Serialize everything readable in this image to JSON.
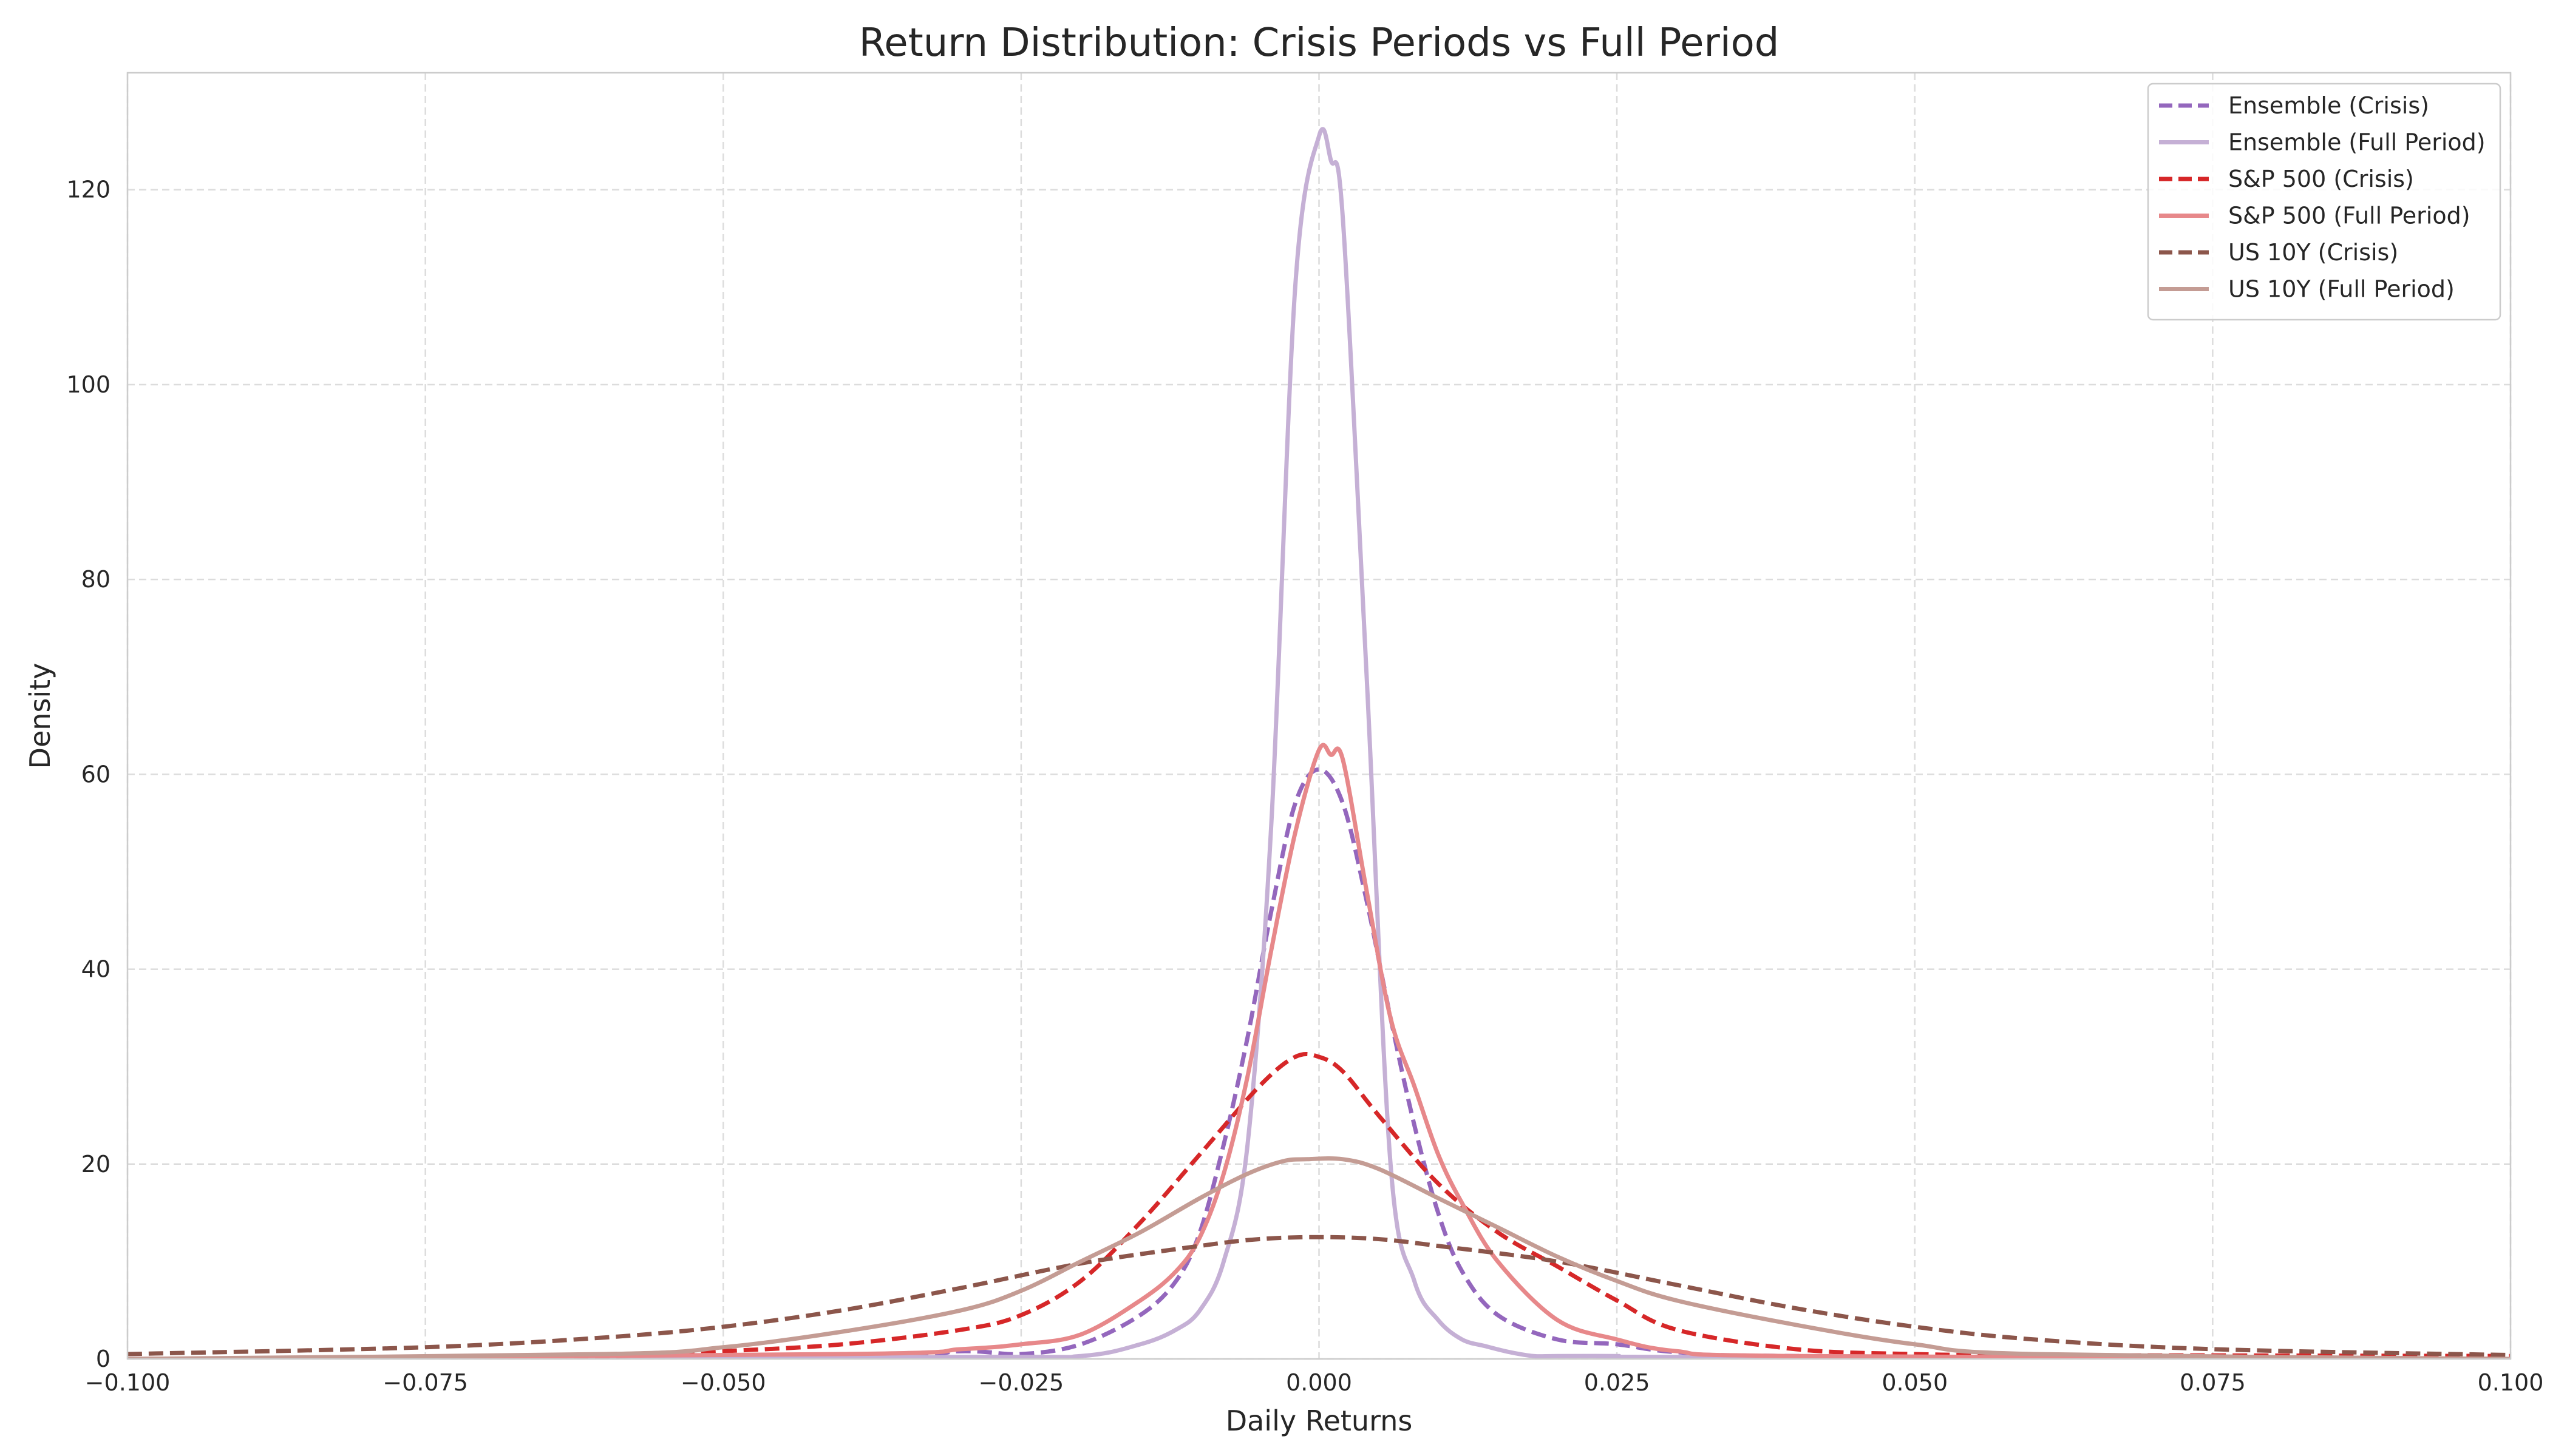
{
  "chart_data": {
    "type": "line",
    "title": "Return Distribution: Crisis Periods vs Full Period",
    "xlabel": "Daily Returns",
    "ylabel": "Density",
    "xlim": [
      -0.1,
      0.1
    ],
    "ylim": [
      0,
      132
    ],
    "x_ticks": [
      -0.1,
      -0.075,
      -0.05,
      -0.025,
      0.0,
      0.025,
      0.05,
      0.075,
      0.1
    ],
    "x_tick_labels": [
      "−0.100",
      "−0.075",
      "−0.050",
      "−0.025",
      "0.000",
      "0.025",
      "0.050",
      "0.075",
      "0.100"
    ],
    "y_ticks": [
      0,
      20,
      40,
      60,
      80,
      100,
      120
    ],
    "y_tick_labels": [
      "0",
      "20",
      "40",
      "60",
      "80",
      "100",
      "120"
    ],
    "grid": true,
    "legend_position": "top-right",
    "series": [
      {
        "name": "Ensemble (Crisis)",
        "color": "#9467bd",
        "style": "dashed",
        "x": [
          -0.1,
          -0.04,
          -0.03,
          -0.025,
          -0.02,
          -0.015,
          -0.012,
          -0.01,
          -0.008,
          -0.006,
          -0.004,
          -0.002,
          0.0,
          0.002,
          0.004,
          0.006,
          0.008,
          0.01,
          0.012,
          0.015,
          0.02,
          0.025,
          0.03,
          0.04,
          0.1
        ],
        "y": [
          0.0,
          0.3,
          0.8,
          0.5,
          1.5,
          4.5,
          8,
          13,
          22,
          33,
          46,
          57,
          60.5,
          57,
          47,
          35,
          24,
          15,
          9,
          4.5,
          2,
          1.5,
          0.7,
          0.3,
          0.0
        ]
      },
      {
        "name": "Ensemble (Full Period)",
        "color": "#c5b0d5",
        "style": "solid",
        "x": [
          -0.1,
          -0.03,
          -0.02,
          -0.015,
          -0.012,
          -0.01,
          -0.008,
          -0.006,
          -0.004,
          -0.002,
          0.0,
          0.001,
          0.002,
          0.004,
          0.006,
          0.008,
          0.01,
          0.012,
          0.014,
          0.016,
          0.018,
          0.02,
          0.025,
          0.03,
          0.1
        ],
        "y": [
          0.0,
          0.2,
          0.3,
          1.5,
          3,
          5,
          10,
          22,
          55,
          110,
          125.5,
          123,
          117,
          70,
          20,
          8,
          4,
          2,
          1.3,
          0.7,
          0.3,
          0.3,
          0.3,
          0.2,
          0.0
        ]
      },
      {
        "name": "S&P 500 (Crisis)",
        "color": "#d62728",
        "style": "dashed",
        "x": [
          -0.1,
          -0.06,
          -0.05,
          -0.04,
          -0.03,
          -0.025,
          -0.02,
          -0.015,
          -0.01,
          -0.005,
          -0.002,
          0.0,
          0.002,
          0.005,
          0.01,
          0.015,
          0.02,
          0.025,
          0.03,
          0.04,
          0.05,
          0.06,
          0.1
        ],
        "y": [
          0.0,
          0.3,
          0.8,
          1.5,
          3,
          4.5,
          8,
          14,
          21,
          28,
          31,
          31,
          29.5,
          25,
          18,
          13,
          9.5,
          6,
          3,
          1,
          0.5,
          0.4,
          0.3
        ]
      },
      {
        "name": "S&P 500 (Full Period)",
        "color": "#e7888a",
        "style": "solid",
        "x": [
          -0.1,
          -0.04,
          -0.03,
          -0.025,
          -0.02,
          -0.015,
          -0.012,
          -0.01,
          -0.008,
          -0.006,
          -0.004,
          -0.002,
          0.0,
          0.001,
          0.002,
          0.004,
          0.006,
          0.008,
          0.01,
          0.012,
          0.015,
          0.02,
          0.025,
          0.03,
          0.04,
          0.1
        ],
        "y": [
          0.0,
          0.5,
          1,
          1.5,
          2.5,
          6,
          9,
          12.5,
          19,
          29,
          42,
          54,
          62.5,
          62,
          61.5,
          48,
          35,
          28,
          21,
          16,
          10,
          4,
          2,
          0.8,
          0.3,
          0.0
        ]
      },
      {
        "name": "US 10Y (Crisis)",
        "color": "#8c564b",
        "style": "dashed",
        "x": [
          -0.1,
          -0.075,
          -0.06,
          -0.05,
          -0.04,
          -0.03,
          -0.02,
          -0.01,
          -0.005,
          0.0,
          0.005,
          0.01,
          0.02,
          0.03,
          0.04,
          0.05,
          0.06,
          0.075,
          0.1
        ],
        "y": [
          0.5,
          1.2,
          2.2,
          3.3,
          5,
          7.3,
          9.8,
          11.6,
          12.3,
          12.5,
          12.3,
          11.6,
          10,
          7.6,
          5.2,
          3.3,
          2,
          1,
          0.4
        ]
      },
      {
        "name": "US 10Y (Full Period)",
        "color": "#c49c94",
        "style": "solid",
        "x": [
          -0.1,
          -0.06,
          -0.05,
          -0.04,
          -0.03,
          -0.025,
          -0.02,
          -0.015,
          -0.01,
          -0.006,
          -0.003,
          -0.001,
          0.002,
          0.005,
          0.01,
          0.015,
          0.02,
          0.025,
          0.03,
          0.04,
          0.05,
          0.06,
          0.1
        ],
        "y": [
          0.0,
          0.5,
          1.2,
          2.8,
          5,
          7,
          10,
          13,
          16.5,
          19,
          20.3,
          20.5,
          20.5,
          19.5,
          16.5,
          13.5,
          10.5,
          8,
          6,
          3.5,
          1.5,
          0.5,
          0.0
        ]
      }
    ]
  }
}
